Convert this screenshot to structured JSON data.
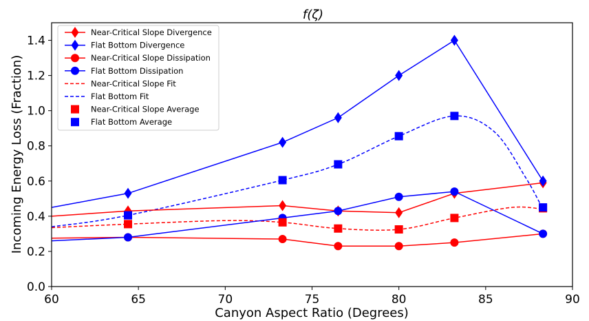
{
  "chart_data": {
    "type": "line",
    "title": "f(ζ)",
    "xlabel": "Canyon Aspect Ratio (Degrees)",
    "ylabel": "Incoming Energy Loss (Fraction)",
    "xlim": [
      60,
      90
    ],
    "ylim": [
      0,
      1.5
    ],
    "xticks": [
      "60",
      "65",
      "70",
      "75",
      "80",
      "85",
      "90"
    ],
    "yticks": [
      "0.0",
      "0.2",
      "0.4",
      "0.6",
      "0.8",
      "1.0",
      "1.2",
      "1.4"
    ],
    "legend_position": "upper-left",
    "grid": false,
    "series": [
      {
        "name": "Near-Critical Slope Divergence",
        "color": "#ff0000",
        "marker": "thin_diamond",
        "line": "solid",
        "x": [
          60,
          64.4,
          73.3,
          76.5,
          80.0,
          83.2,
          88.3
        ],
        "y": [
          0.4,
          0.43,
          0.46,
          0.43,
          0.42,
          0.53,
          0.59
        ],
        "marker_from_index": 1
      },
      {
        "name": "Flat Bottom Divergence",
        "color": "#0000ff",
        "marker": "thin_diamond",
        "line": "solid",
        "x": [
          60,
          64.4,
          73.3,
          76.5,
          80.0,
          83.2,
          88.3
        ],
        "y": [
          0.45,
          0.53,
          0.82,
          0.96,
          1.2,
          1.4,
          0.6
        ],
        "marker_from_index": 1
      },
      {
        "name": "Near-Critical Slope Dissipation",
        "color": "#ff0000",
        "marker": "circle",
        "line": "solid",
        "x": [
          60,
          64.4,
          73.3,
          76.5,
          80.0,
          83.2,
          88.3
        ],
        "y": [
          0.275,
          0.28,
          0.27,
          0.23,
          0.23,
          0.25,
          0.3
        ],
        "marker_from_index": 1
      },
      {
        "name": "Flat Bottom Dissipation",
        "color": "#0000ff",
        "marker": "circle",
        "line": "solid",
        "x": [
          60,
          64.4,
          73.3,
          76.5,
          80.0,
          83.2,
          88.3
        ],
        "y": [
          0.26,
          0.28,
          0.39,
          0.43,
          0.51,
          0.54,
          0.3
        ],
        "marker_from_index": 1
      },
      {
        "name": "Near-Critical Slope Fit",
        "color": "#ff0000",
        "marker": "none",
        "line": "dashed",
        "x": [
          60,
          64.4,
          70,
          73.3,
          76.5,
          80.0,
          83.2,
          86.5,
          88.3
        ],
        "y": [
          0.335,
          0.355,
          0.375,
          0.365,
          0.33,
          0.325,
          0.39,
          0.45,
          0.44
        ]
      },
      {
        "name": "Flat Bottom Fit",
        "color": "#0000ff",
        "marker": "none",
        "line": "dashed",
        "x": [
          60,
          64.4,
          73.3,
          76.5,
          80.0,
          83.2,
          85.5,
          87.3,
          88.3
        ],
        "y": [
          0.34,
          0.405,
          0.605,
          0.695,
          0.855,
          0.97,
          0.88,
          0.62,
          0.44
        ]
      },
      {
        "name": "Near-Critical Slope Average",
        "color": "#ff0000",
        "marker": "square",
        "line": "none",
        "x": [
          64.4,
          73.3,
          76.5,
          80.0,
          83.2,
          88.3
        ],
        "y": [
          0.355,
          0.365,
          0.33,
          0.325,
          0.39,
          0.445
        ]
      },
      {
        "name": "Flat Bottom Average",
        "color": "#0000ff",
        "marker": "square",
        "line": "none",
        "x": [
          64.4,
          73.3,
          76.5,
          80.0,
          83.2,
          88.3
        ],
        "y": [
          0.405,
          0.605,
          0.695,
          0.855,
          0.97,
          0.45
        ]
      }
    ]
  }
}
